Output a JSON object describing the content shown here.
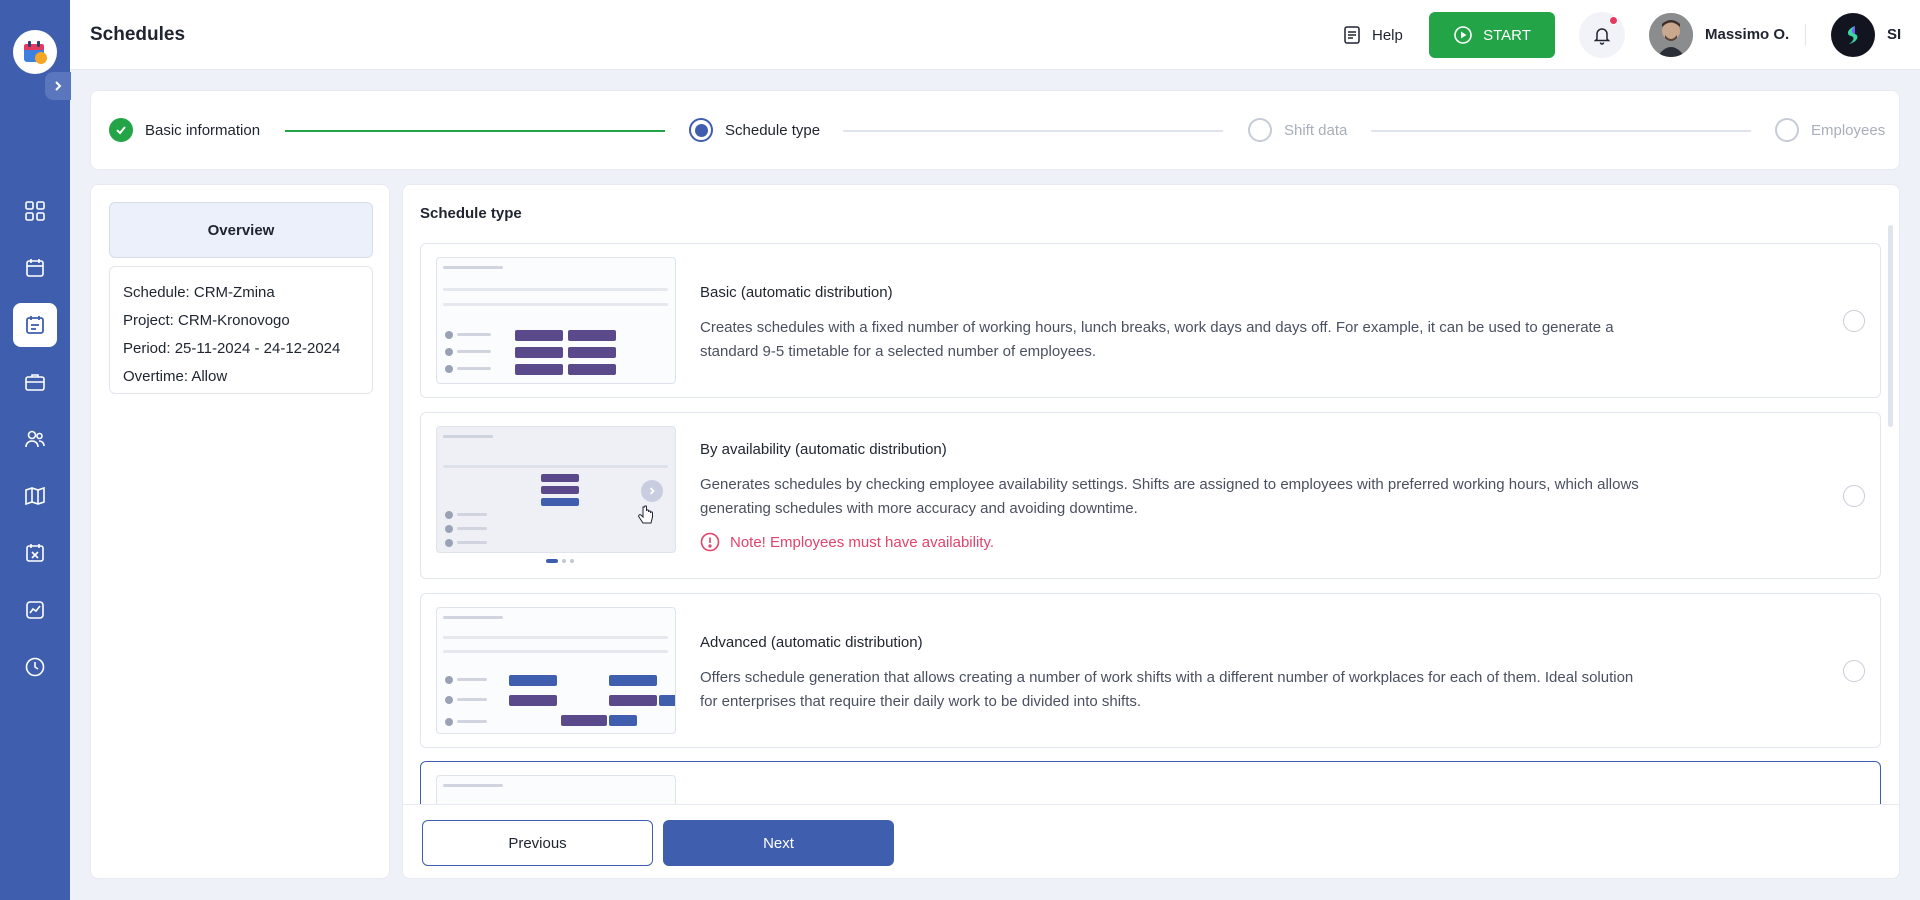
{
  "header": {
    "title": "Schedules",
    "help_label": "Help",
    "start_label": "START",
    "user_name": "Massimo O.",
    "company_abbr": "SI"
  },
  "stepper": {
    "steps": [
      {
        "label": "Basic information",
        "state": "done"
      },
      {
        "label": "Schedule type",
        "state": "current"
      },
      {
        "label": "Shift data",
        "state": "pending"
      },
      {
        "label": "Employees",
        "state": "pending"
      }
    ]
  },
  "overview": {
    "tab_label": "Overview",
    "lines": [
      "Schedule: CRM-Zmina",
      "Project: CRM-Kronovogo",
      "Period: 25-11-2024 - 24-12-2024",
      "Overtime: Allow"
    ]
  },
  "schedule_type": {
    "section_title": "Schedule type",
    "options": [
      {
        "title": "Basic (automatic distribution)",
        "description": "Creates schedules with a fixed number of working hours, lunch breaks, work days and days off. For example, it can be used to generate a standard 9-5 timetable for a selected number of employees."
      },
      {
        "title": "By availability (automatic distribution)",
        "description": "Generates schedules by checking employee availability settings. Shifts are assigned to employees with preferred working hours, which allows generating schedules with more accuracy and avoiding downtime.",
        "note": "Note! Employees must have availability."
      },
      {
        "title": "Advanced (automatic distribution)",
        "description": "Offers schedule generation that allows creating a number of work shifts with a different number of workplaces for each of them. Ideal solution for enterprises that require their daily work to be divided into shifts."
      }
    ]
  },
  "footer": {
    "previous_label": "Previous",
    "next_label": "Next"
  },
  "colors": {
    "primary": "#3f5fae",
    "success": "#22a447",
    "danger": "#e0436b"
  },
  "icons": {
    "sidebar": [
      "dashboard-icon",
      "calendar-icon",
      "schedule-icon",
      "briefcase-icon",
      "users-icon",
      "map-icon",
      "calendar-x-icon",
      "chart-icon",
      "clock-icon"
    ]
  }
}
